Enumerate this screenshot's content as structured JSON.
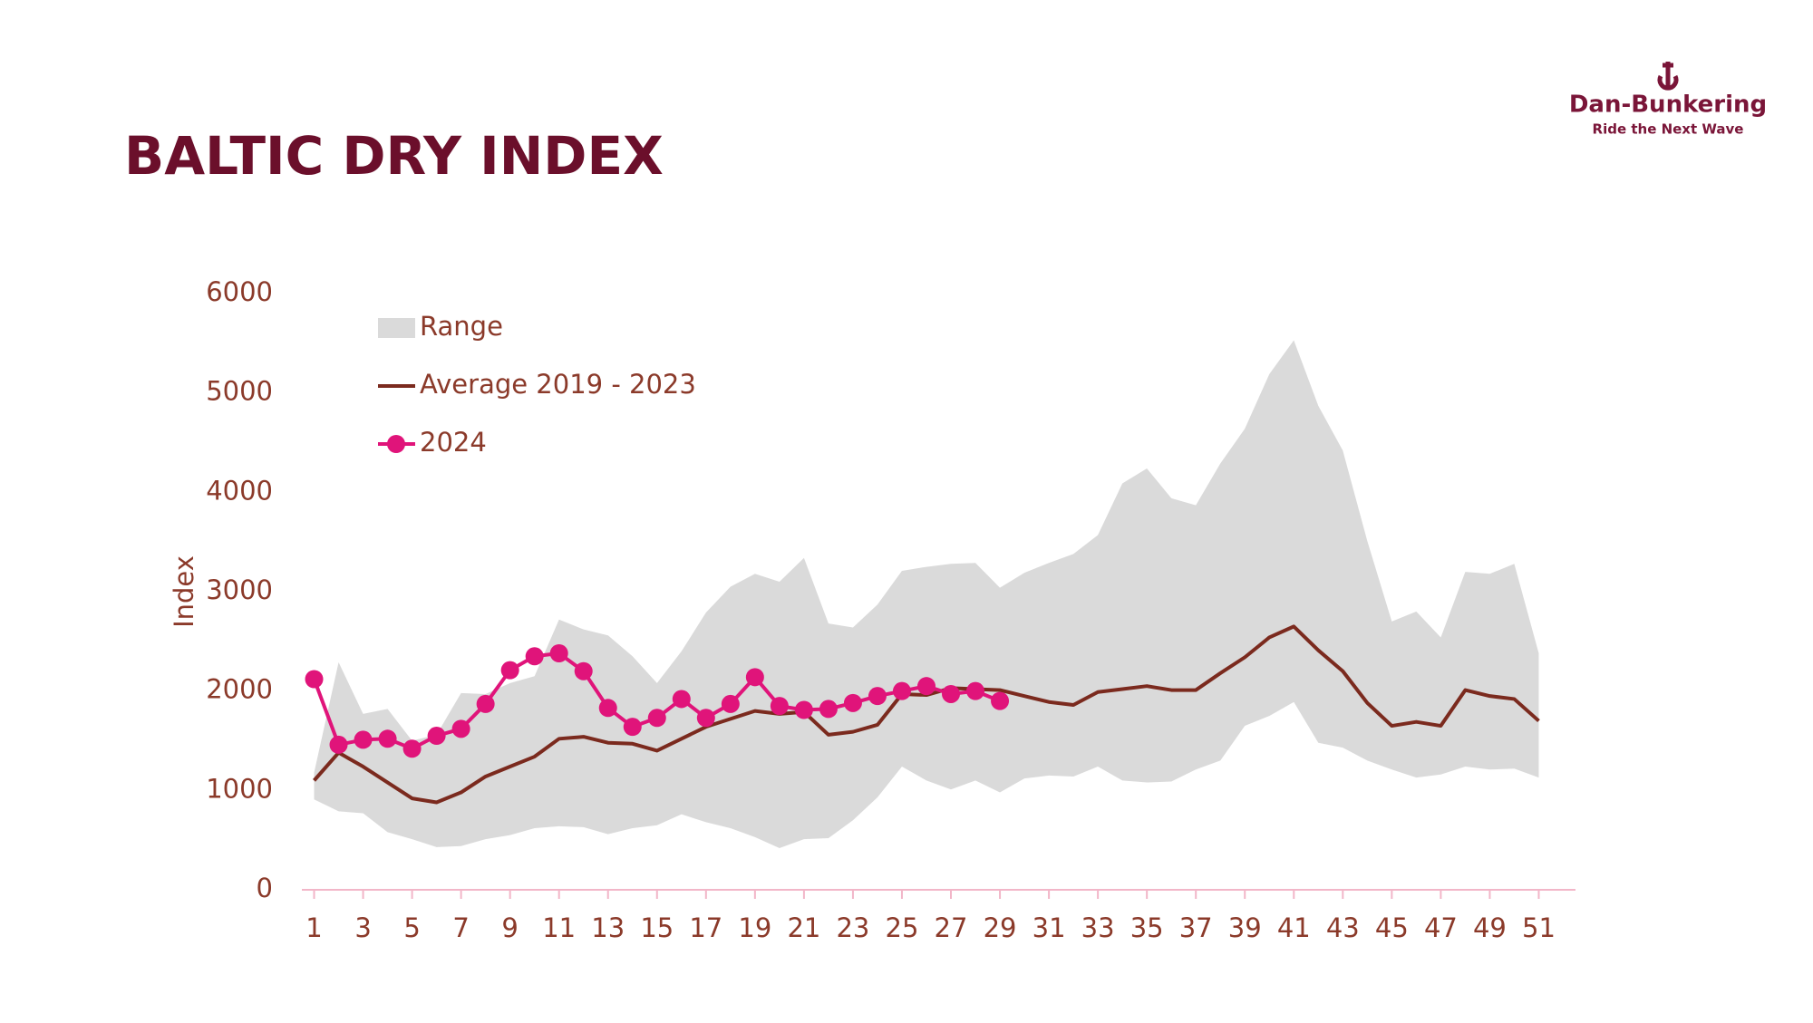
{
  "chart_data": {
    "type": "range-line",
    "title": "BALTIC DRY INDEX",
    "y_label": "Index",
    "x": [
      1,
      2,
      3,
      4,
      5,
      6,
      7,
      8,
      9,
      10,
      11,
      12,
      13,
      14,
      15,
      16,
      17,
      18,
      19,
      20,
      21,
      22,
      23,
      24,
      25,
      26,
      27,
      28,
      29,
      30,
      31,
      32,
      33,
      34,
      35,
      36,
      37,
      38,
      39,
      40,
      41,
      42,
      43,
      44,
      45,
      46,
      47,
      48,
      49,
      50,
      51
    ],
    "xlim": [
      0.5,
      52.5
    ],
    "xticks": [
      1,
      3,
      5,
      7,
      9,
      11,
      13,
      15,
      17,
      19,
      21,
      23,
      25,
      27,
      29,
      31,
      33,
      35,
      37,
      39,
      41,
      43,
      45,
      47,
      49,
      51
    ],
    "ylim": [
      0,
      6000
    ],
    "yticks": [
      0,
      1000,
      2000,
      3000,
      4000,
      5000,
      6000
    ],
    "series": [
      {
        "name": "Range",
        "kind": "band",
        "color": "#dadada",
        "high": [
          1180,
          2290,
          1770,
          1820,
          1500,
          1560,
          1980,
          1970,
          2080,
          2150,
          2720,
          2620,
          2560,
          2350,
          2080,
          2400,
          2790,
          3050,
          3180,
          3100,
          3340,
          2680,
          2640,
          2870,
          3210,
          3250,
          3280,
          3290,
          3040,
          3190,
          3290,
          3380,
          3570,
          4090,
          4240,
          3940,
          3870,
          4290,
          4640,
          5190,
          5530,
          4870,
          4420,
          3510,
          2700,
          2800,
          2540,
          3200,
          3180,
          3280,
          2380
        ],
        "low": [
          910,
          790,
          770,
          580,
          510,
          430,
          440,
          510,
          550,
          620,
          640,
          630,
          560,
          620,
          650,
          760,
          680,
          620,
          530,
          420,
          510,
          520,
          700,
          930,
          1240,
          1100,
          1010,
          1100,
          980,
          1120,
          1150,
          1140,
          1240,
          1100,
          1080,
          1090,
          1210,
          1300,
          1650,
          1750,
          1890,
          1480,
          1430,
          1300,
          1210,
          1130,
          1160,
          1240,
          1210,
          1220,
          1130
        ]
      },
      {
        "name": "Average 2019 - 2023",
        "kind": "line",
        "color": "#7b2a1e",
        "values": [
          1100,
          1380,
          1240,
          1080,
          920,
          880,
          980,
          1140,
          1240,
          1340,
          1520,
          1540,
          1480,
          1470,
          1400,
          1520,
          1640,
          1720,
          1800,
          1770,
          1790,
          1560,
          1590,
          1660,
          1970,
          1960,
          2030,
          2020,
          2010,
          1950,
          1890,
          1860,
          1990,
          2020,
          2050,
          2010,
          2010,
          2180,
          2340,
          2540,
          2650,
          2410,
          2200,
          1880,
          1650,
          1690,
          1650,
          2010,
          1950,
          1920,
          1700
        ]
      },
      {
        "name": "2024",
        "kind": "line-markers",
        "color": "#e0147a",
        "values": [
          2120,
          1460,
          1510,
          1520,
          1420,
          1550,
          1620,
          1870,
          2210,
          2350,
          2380,
          2200,
          1830,
          1640,
          1730,
          1920,
          1730,
          1870,
          2140,
          1850,
          1810,
          1820,
          1880,
          1950,
          2000,
          2050,
          1970,
          2000,
          1900,
          null,
          null,
          null,
          null,
          null,
          null,
          null,
          null,
          null,
          null,
          null,
          null,
          null,
          null,
          null,
          null,
          null,
          null,
          null,
          null,
          null,
          null
        ]
      }
    ]
  },
  "logo": {
    "name": "Dan-Bunkering",
    "tagline": "Ride the Next Wave"
  }
}
